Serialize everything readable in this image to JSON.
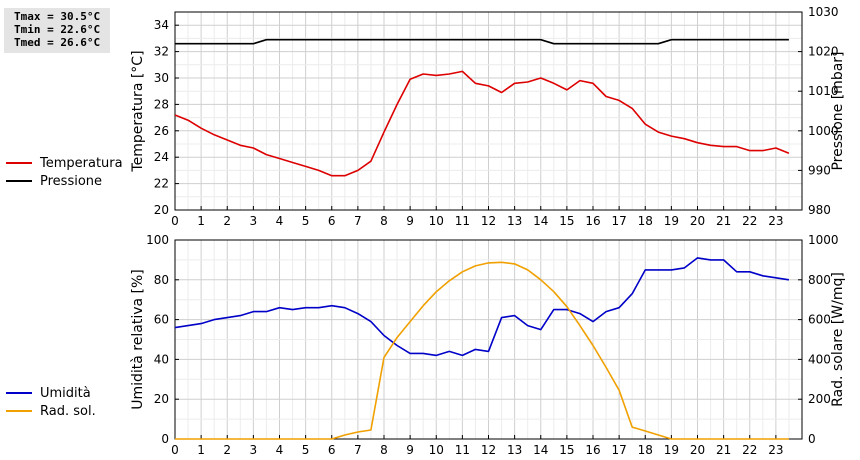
{
  "stats": {
    "tmax": "Tmax = 30.5°C",
    "tmin": "Tmin = 22.6°C",
    "tmed": "Tmed = 26.6°C"
  },
  "chart_data": [
    {
      "type": "line",
      "x_ticks": [
        "0",
        "1",
        "2",
        "3",
        "4",
        "5",
        "6",
        "7",
        "8",
        "9",
        "10",
        "11",
        "12",
        "13",
        "14",
        "15",
        "16",
        "17",
        "18",
        "19",
        "20",
        "21",
        "22",
        "23"
      ],
      "grid": true,
      "ylabel_left": "Temperatura [°C]",
      "ylabel_right": "Pressione [mbar]",
      "ylim_left": [
        20,
        35
      ],
      "ylim_right": [
        980,
        1030
      ],
      "yticks_left": [
        "20",
        "22",
        "24",
        "26",
        "28",
        "30",
        "32",
        "34"
      ],
      "yticks_right": [
        "980",
        "990",
        "1000",
        "1010",
        "1020",
        "1030"
      ],
      "series": [
        {
          "name": "Temperatura",
          "axis": "left",
          "color": "#dd0000",
          "x": [
            0,
            0.5,
            1,
            1.5,
            2,
            2.5,
            3,
            3.5,
            4,
            4.5,
            5,
            5.5,
            6,
            6.5,
            7,
            7.5,
            8,
            8.5,
            9,
            9.5,
            10,
            10.5,
            11,
            11.5,
            12,
            12.5,
            13,
            13.5,
            14,
            14.5,
            15,
            15.5,
            16,
            16.5,
            17,
            17.5,
            18,
            18.5,
            19,
            19.5,
            20,
            20.5,
            21,
            21.5,
            22,
            22.5,
            23,
            23.5
          ],
          "values": [
            27.2,
            26.8,
            26.2,
            25.7,
            25.3,
            24.9,
            24.7,
            24.2,
            23.9,
            23.6,
            23.3,
            23.0,
            22.6,
            22.6,
            23.0,
            23.7,
            25.9,
            28.0,
            29.9,
            30.3,
            30.2,
            30.3,
            30.5,
            29.6,
            29.4,
            28.9,
            29.6,
            29.7,
            30.0,
            29.6,
            29.1,
            29.8,
            29.6,
            28.6,
            28.3,
            27.7,
            26.5,
            25.9,
            25.6,
            25.4,
            25.1,
            24.9,
            24.8,
            24.8,
            24.5,
            24.5,
            24.7,
            24.3
          ]
        },
        {
          "name": "Pressione",
          "axis": "right",
          "color": "#000000",
          "x": [
            0,
            3,
            3.5,
            14,
            14.5,
            18.5,
            19,
            23.5
          ],
          "values": [
            1022,
            1022,
            1023,
            1023,
            1022,
            1022,
            1023,
            1023
          ]
        }
      ]
    },
    {
      "type": "line",
      "x_ticks": [
        "0",
        "1",
        "2",
        "3",
        "4",
        "5",
        "6",
        "7",
        "8",
        "9",
        "10",
        "11",
        "12",
        "13",
        "14",
        "15",
        "16",
        "17",
        "18",
        "19",
        "20",
        "21",
        "22",
        "23"
      ],
      "grid": true,
      "ylabel_left": "Umidità relativa [%]",
      "ylabel_right": "Rad. solare [W/mq]",
      "ylim_left": [
        0,
        100
      ],
      "ylim_right": [
        0,
        1000
      ],
      "yticks_left": [
        "0",
        "20",
        "40",
        "60",
        "80",
        "100"
      ],
      "yticks_right": [
        "0",
        "200",
        "400",
        "600",
        "800",
        "1000"
      ],
      "series": [
        {
          "name": "Umidità",
          "axis": "left",
          "color": "#0000c8",
          "x": [
            0,
            0.5,
            1,
            1.5,
            2,
            2.5,
            3,
            3.5,
            4,
            4.5,
            5,
            5.5,
            6,
            6.5,
            7,
            7.5,
            8,
            8.5,
            9,
            9.5,
            10,
            10.5,
            11,
            11.5,
            12,
            12.5,
            13,
            13.5,
            14,
            14.5,
            15,
            15.5,
            16,
            16.5,
            17,
            17.5,
            18,
            18.5,
            19,
            19.5,
            20,
            20.5,
            21,
            21.5,
            22,
            22.5,
            23,
            23.5
          ],
          "values": [
            56,
            57,
            58,
            60,
            61,
            62,
            64,
            64,
            66,
            65,
            66,
            66,
            67,
            66,
            63,
            59,
            52,
            47,
            43,
            43,
            42,
            44,
            42,
            45,
            44,
            61,
            62,
            57,
            55,
            65,
            65,
            63,
            59,
            64,
            66,
            73,
            85,
            85,
            85,
            86,
            91,
            90,
            90,
            84,
            84,
            82,
            81,
            80
          ]
        },
        {
          "name": "Rad. sol.",
          "axis": "right",
          "color": "#f0a000",
          "x": [
            0,
            6,
            6.5,
            7,
            7.5,
            8,
            8.5,
            9,
            9.5,
            10,
            10.5,
            11,
            11.5,
            12,
            12.5,
            13,
            13.5,
            14,
            14.5,
            15,
            15.5,
            16,
            16.5,
            17,
            17.5,
            18,
            18.5,
            19,
            23.5
          ],
          "values": [
            0,
            0,
            20,
            35,
            45,
            410,
            510,
            590,
            670,
            740,
            795,
            840,
            870,
            885,
            888,
            880,
            850,
            800,
            740,
            665,
            570,
            470,
            360,
            245,
            60,
            40,
            20,
            0,
            0
          ]
        }
      ]
    }
  ]
}
